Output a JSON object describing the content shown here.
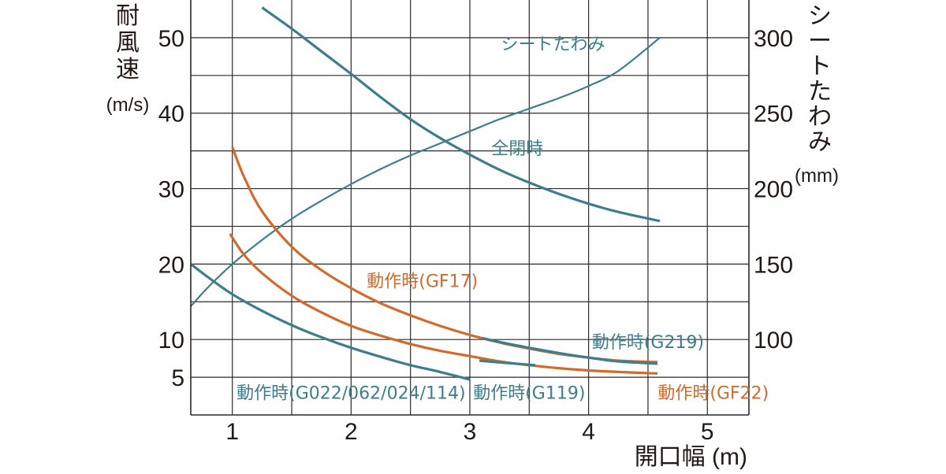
{
  "colors": {
    "teal": "#3d7e8c",
    "orange": "#d26a2c",
    "grid": "#2a2a2a",
    "text": "#231815"
  },
  "chart_data": {
    "type": "line",
    "grid": true,
    "xlabel": "開口幅 (m)",
    "xlim": [
      0.65,
      5.35
    ],
    "xticks": [
      1,
      2,
      3,
      4,
      5
    ],
    "y_left": {
      "label_chars": [
        "耐",
        "風",
        "速"
      ],
      "unit": "(m/s)",
      "ylim": [
        0,
        55
      ],
      "ticks": [
        5,
        10,
        20,
        30,
        40,
        50
      ]
    },
    "y_right": {
      "label_chars": [
        "シ",
        "ー",
        "ト",
        "た",
        "わ",
        "み"
      ],
      "unit": "(mm)",
      "ylim": [
        50,
        325
      ],
      "ticks": [
        100,
        150,
        200,
        250,
        300
      ]
    },
    "series": [
      {
        "name": "シートたわみ",
        "axis": "right",
        "color": "#3d7e8c",
        "width": 2.2,
        "x": [
          0.65,
          0.8,
          1.0,
          1.25,
          1.5,
          1.75,
          2.0,
          2.25,
          2.5,
          2.75,
          3.0,
          3.25,
          3.5,
          3.75,
          4.0,
          4.25,
          4.6
        ],
        "y": [
          122,
          135,
          150,
          166,
          180,
          192,
          203,
          213,
          222,
          230,
          238,
          246,
          253,
          260,
          268,
          278,
          300
        ]
      },
      {
        "name": "全閉時",
        "axis": "left",
        "color": "#3d7e8c",
        "width": 3.2,
        "x": [
          1.25,
          1.5,
          1.75,
          2.0,
          2.25,
          2.5,
          2.75,
          3.0,
          3.25,
          3.5,
          3.75,
          4.0,
          4.25,
          4.6
        ],
        "y": [
          54,
          51.2,
          48.2,
          45.2,
          42.1,
          39.2,
          36.7,
          34.5,
          32.5,
          30.8,
          29.3,
          28.0,
          26.9,
          25.7
        ]
      },
      {
        "name": "動作時(GF17)",
        "axis": "left",
        "color": "#d26a2c",
        "width": 3.2,
        "x": [
          1.0,
          1.1,
          1.25,
          1.5,
          1.75,
          2.0,
          2.25,
          2.5,
          2.75,
          3.0,
          3.25,
          3.5,
          3.75,
          4.0,
          4.25,
          4.58
        ],
        "y": [
          35.5,
          31.5,
          27.0,
          22.3,
          19.2,
          16.8,
          14.8,
          13.2,
          11.8,
          10.6,
          9.6,
          8.8,
          8.1,
          7.6,
          7.2,
          7.0
        ]
      },
      {
        "name": "動作時(GF22)",
        "axis": "left",
        "color": "#d26a2c",
        "width": 3.2,
        "x": [
          0.98,
          1.1,
          1.25,
          1.5,
          1.75,
          2.0,
          2.25,
          2.5,
          2.75,
          3.0,
          3.25,
          3.5,
          3.75,
          4.0,
          4.25,
          4.58
        ],
        "y": [
          24.0,
          21.2,
          18.8,
          15.8,
          13.6,
          11.8,
          10.5,
          9.4,
          8.5,
          7.8,
          7.1,
          6.6,
          6.2,
          5.9,
          5.7,
          5.5
        ]
      },
      {
        "name": "動作時(G219)",
        "axis": "left",
        "color": "#3d7e8c",
        "width": 3.2,
        "x": [
          3.1,
          3.3,
          3.5,
          3.75,
          4.0,
          4.25,
          4.58
        ],
        "y": [
          10.2,
          9.5,
          8.9,
          8.2,
          7.6,
          7.1,
          6.8
        ]
      },
      {
        "name": "動作時(G119)",
        "axis": "left",
        "color": "#3d7e8c",
        "width": 3.2,
        "x": [
          3.08,
          3.3,
          3.55
        ],
        "y": [
          7.2,
          6.9,
          6.6
        ]
      },
      {
        "name": "動作時(G022/062/024/114)",
        "axis": "left",
        "color": "#3d7e8c",
        "width": 3.2,
        "x": [
          0.65,
          0.8,
          1.0,
          1.25,
          1.5,
          1.75,
          2.0,
          2.25,
          2.5,
          2.75,
          3.0
        ],
        "y": [
          20.0,
          18.2,
          16.0,
          13.8,
          11.9,
          10.3,
          8.9,
          7.7,
          6.6,
          5.7,
          4.7
        ]
      }
    ],
    "annotations": [
      {
        "text": "シートたわみ",
        "color": "#3d7e8c",
        "x": 3.7,
        "y_left": 49.2
      },
      {
        "text": "全閉時",
        "color": "#3d7e8c",
        "x": 3.4,
        "y_left": 35.4
      },
      {
        "text": "動作時(GF17)",
        "color": "#d26a2c",
        "x": 2.6,
        "y_left": 17.8
      },
      {
        "text": "動作時(G219)",
        "color": "#3d7e8c",
        "x": 4.5,
        "y_left": 9.7
      },
      {
        "text": "動作時(G119)",
        "color": "#3d7e8c",
        "x": 3.5,
        "y_left": 3.0
      },
      {
        "text": "動作時(GF22)",
        "color": "#d26a2c",
        "x": 5.05,
        "y_left": 3.0
      },
      {
        "text": "動作時(G022/062/024/114)",
        "color": "#3d7e8c",
        "x": 2.0,
        "y_left": 3.0
      }
    ]
  }
}
